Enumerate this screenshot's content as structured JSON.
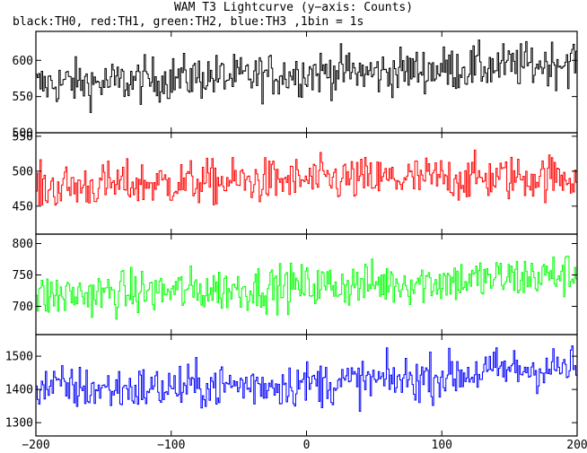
{
  "chart_data": {
    "type": "line",
    "title": "WAM T3 Lightcurve (y−axis: Counts)",
    "subtitle": "black:TH0, red:TH1, green:TH2, blue:TH3 ,1bin = 1s",
    "xlim": [
      -200,
      200
    ],
    "x_ticks": [
      -200,
      -100,
      0,
      100,
      200
    ],
    "x_tick_labels": [
      "−200",
      "−100",
      "0",
      "100",
      "200"
    ],
    "panels": [
      {
        "name": "TH0",
        "color": "#000000",
        "ylim": [
          500,
          640
        ],
        "y_ticks": [
          500,
          550,
          600
        ],
        "y_tick_labels": [
          "500",
          "550",
          "600"
        ],
        "x": [
          -200,
          -175,
          -150,
          -125,
          -100,
          -75,
          -50,
          -25,
          0,
          25,
          50,
          75,
          100,
          125,
          150,
          175,
          200
        ],
        "values": [
          565,
          570,
          568,
          572,
          575,
          578,
          576,
          580,
          583,
          585,
          582,
          586,
          588,
          590,
          592,
          595,
          600
        ]
      },
      {
        "name": "TH1",
        "color": "#ff0000",
        "ylim": [
          410,
          555
        ],
        "y_ticks": [
          450,
          500,
          550
        ],
        "y_tick_labels": [
          "450",
          "500",
          "550"
        ],
        "x": [
          -200,
          -175,
          -150,
          -125,
          -100,
          -75,
          -50,
          -25,
          0,
          25,
          50,
          75,
          100,
          125,
          150,
          175,
          200
        ],
        "values": [
          475,
          478,
          480,
          482,
          483,
          484,
          485,
          486,
          487,
          488,
          488,
          489,
          490,
          490,
          491,
          492,
          493
        ]
      },
      {
        "name": "TH2",
        "color": "#00ff00",
        "ylim": [
          655,
          815
        ],
        "y_ticks": [
          700,
          750,
          800
        ],
        "y_tick_labels": [
          "700",
          "750",
          "800"
        ],
        "x": [
          -200,
          -175,
          -150,
          -125,
          -100,
          -75,
          -50,
          -25,
          0,
          25,
          50,
          75,
          100,
          125,
          150,
          175,
          200
        ],
        "values": [
          715,
          718,
          720,
          722,
          724,
          726,
          728,
          730,
          732,
          734,
          736,
          738,
          740,
          742,
          745,
          748,
          752
        ]
      },
      {
        "name": "TH3",
        "color": "#0000ff",
        "ylim": [
          1260,
          1565
        ],
        "y_ticks": [
          1300,
          1400,
          1500
        ],
        "y_tick_labels": [
          "1300",
          "1400",
          "1500"
        ],
        "x": [
          -200,
          -175,
          -150,
          -125,
          -100,
          -75,
          -50,
          -25,
          0,
          25,
          50,
          75,
          100,
          125,
          150,
          175,
          200
        ],
        "values": [
          1410,
          1405,
          1400,
          1402,
          1405,
          1410,
          1412,
          1415,
          1418,
          1420,
          1425,
          1430,
          1440,
          1450,
          1460,
          1462,
          1465
        ]
      }
    ],
    "grid": false,
    "legend": "none"
  }
}
